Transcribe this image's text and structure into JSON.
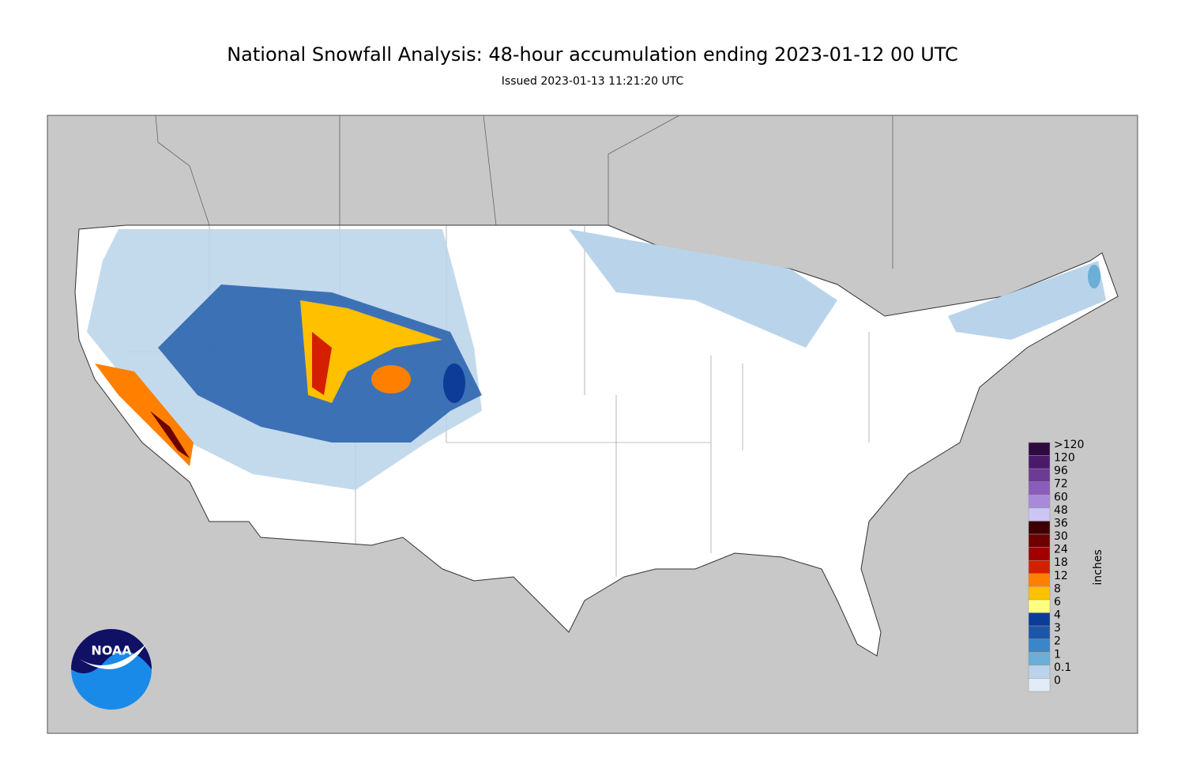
{
  "header": {
    "title": "National Snowfall Analysis: 48-hour accumulation ending 2023-01-12 00 UTC",
    "subtitle": "Issued 2023-01-13 11:21:20 UTC"
  },
  "legend": {
    "unit": "inches",
    "items": [
      {
        "label": ">120",
        "color": "#2e0a40"
      },
      {
        "label": "120",
        "color": "#4b1a6b"
      },
      {
        "label": "96",
        "color": "#6c3b94"
      },
      {
        "label": "72",
        "color": "#8c5cba"
      },
      {
        "label": "60",
        "color": "#a88ad8"
      },
      {
        "label": "48",
        "color": "#cbc6f3"
      },
      {
        "label": "36",
        "color": "#3d0000"
      },
      {
        "label": "30",
        "color": "#6e0000"
      },
      {
        "label": "24",
        "color": "#a00000"
      },
      {
        "label": "18",
        "color": "#d42000"
      },
      {
        "label": "12",
        "color": "#ff8000"
      },
      {
        "label": "8",
        "color": "#ffc000"
      },
      {
        "label": "6",
        "color": "#ffff80"
      },
      {
        "label": "4",
        "color": "#0c3c98"
      },
      {
        "label": "3",
        "color": "#1c56a8"
      },
      {
        "label": "2",
        "color": "#3a86c8"
      },
      {
        "label": "1",
        "color": "#6baed6"
      },
      {
        "label": "0.1",
        "color": "#b9d4ea"
      },
      {
        "label": "0",
        "color": "#e2ecf6"
      }
    ]
  },
  "logo": {
    "text": "NOAA"
  }
}
